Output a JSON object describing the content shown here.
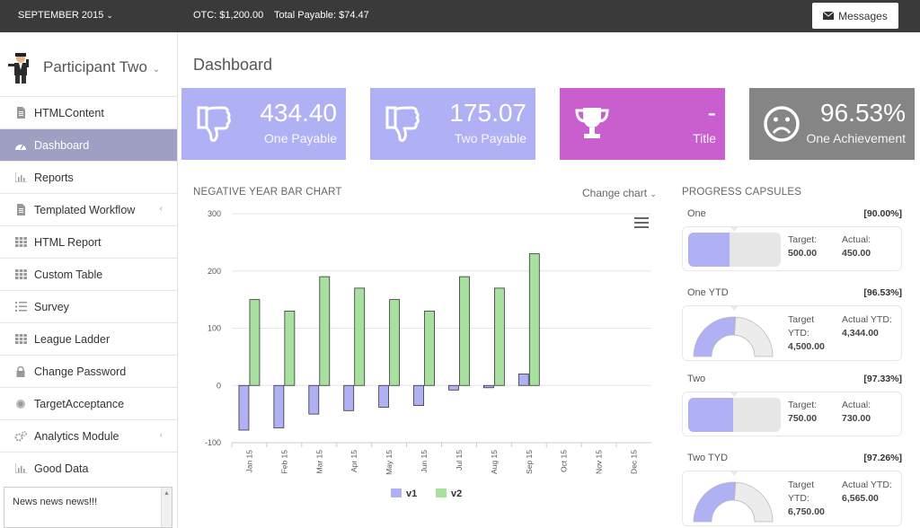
{
  "topbar": {
    "period": "SEPTEMBER 2015",
    "otc_label": "OTC:",
    "otc_value": "$1,200.00",
    "total_label": "Total Payable:",
    "total_value": "$74.47",
    "messages_label": "Messages"
  },
  "sidebar": {
    "participant": "Participant Two",
    "items": [
      {
        "label": "HTMLContent",
        "icon": "document-icon"
      },
      {
        "label": "Dashboard",
        "icon": "dashboard-icon"
      },
      {
        "label": "Reports",
        "icon": "bar-chart-icon"
      },
      {
        "label": "Templated Workflow",
        "icon": "document-icon"
      },
      {
        "label": "HTML Report",
        "icon": "grid-icon"
      },
      {
        "label": "Custom Table",
        "icon": "grid-icon"
      },
      {
        "label": "Survey",
        "icon": "list-icon"
      },
      {
        "label": "League Ladder",
        "icon": "grid-icon"
      },
      {
        "label": "Change Password",
        "icon": "lock-icon"
      },
      {
        "label": "TargetAcceptance",
        "icon": "circle-icon"
      },
      {
        "label": "Analytics Module",
        "icon": "cogs-icon"
      },
      {
        "label": "Good Data",
        "icon": "bar-chart-icon"
      }
    ],
    "news": "News news news!!!"
  },
  "main": {
    "title": "Dashboard",
    "tiles": [
      {
        "value": "434.40",
        "label": "One Payable",
        "icon": "thumbs-down-icon",
        "color": "#b0b0f5"
      },
      {
        "value": "175.07",
        "label": "Two Payable",
        "icon": "thumbs-down-icon",
        "color": "#b0b0f5"
      },
      {
        "value": "-",
        "label": "Title",
        "icon": "trophy-icon",
        "color": "#c95fcf"
      },
      {
        "value": "96.53%",
        "label": "One Achievement",
        "icon": "sad-face-icon",
        "color": "#858585"
      }
    ],
    "chart_title": "NEGATIVE YEAR BAR CHART",
    "change_chart": "Change chart"
  },
  "chart_data": {
    "type": "bar",
    "title": "NEGATIVE YEAR BAR CHART",
    "categories": [
      "Jan 15",
      "Feb 15",
      "Mar 15",
      "Apr 15",
      "May 15",
      "Jun 15",
      "Jul 15",
      "Aug 15",
      "Sep 15",
      "Oct 15",
      "Nov 15",
      "Dec 15"
    ],
    "series": [
      {
        "name": "v1",
        "color": "#b0b0f5",
        "values": [
          -78,
          -74,
          -50,
          -44,
          -38,
          -35,
          -8,
          -4,
          20,
          null,
          null,
          null
        ]
      },
      {
        "name": "v2",
        "color": "#a8e0a0",
        "values": [
          150,
          130,
          190,
          170,
          150,
          130,
          190,
          170,
          230,
          null,
          null,
          null
        ]
      }
    ],
    "ylim": [
      -100,
      300
    ],
    "yticks": [
      -100,
      0,
      100,
      200,
      300
    ],
    "grid": true,
    "legend": "bottom-center"
  },
  "capsules": {
    "title": "PROGRESS CAPSULES",
    "items": [
      {
        "name": "One",
        "pct": "[90.00%]",
        "kind": "pill",
        "level": 0.45,
        "target_label": "Target:",
        "target": "500.00",
        "actual_label": "Actual:",
        "actual": "450.00"
      },
      {
        "name": "One YTD",
        "pct": "[96.53%]",
        "kind": "gauge",
        "level": 0.52,
        "target_label": "Target YTD:",
        "target": "4,500.00",
        "actual_label": "Actual YTD:",
        "actual": "4,344.00"
      },
      {
        "name": "Two",
        "pct": "[97.33%]",
        "kind": "pill",
        "level": 0.49,
        "target_label": "Target:",
        "target": "750.00",
        "actual_label": "Actual:",
        "actual": "730.00"
      },
      {
        "name": "Two TYD",
        "pct": "[97.26%]",
        "kind": "gauge",
        "level": 0.52,
        "target_label": "Target YTD:",
        "target": "6,750.00",
        "actual_label": "Actual YTD:",
        "actual": "6,565.00"
      }
    ]
  }
}
